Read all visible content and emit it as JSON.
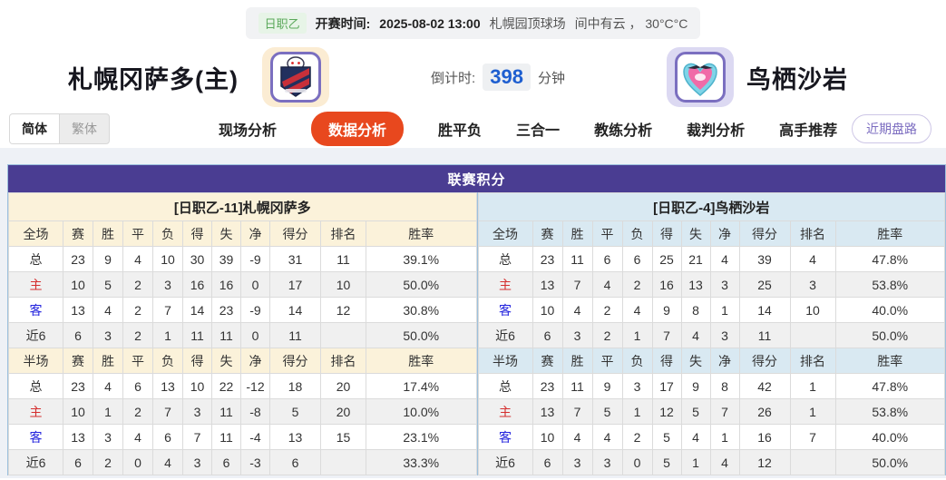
{
  "match_info": {
    "league_badge": "日职乙",
    "kickoff_label": "开赛时间:",
    "kickoff_time": "2025-08-02 13:00",
    "venue": "札幌园顶球场",
    "weather": "间中有云 ， 30°C°C"
  },
  "teams": {
    "home": {
      "name": "札幌冈萨多(主)",
      "crest_icon": "consadole-sapporo-crest"
    },
    "away": {
      "name": "鸟栖沙岩",
      "crest_icon": "sagan-tosu-crest"
    }
  },
  "countdown": {
    "label": "倒计时:",
    "value": "398",
    "unit": "分钟"
  },
  "lang_toggle": {
    "simplified": "简体",
    "traditional": "繁体"
  },
  "nav": {
    "tabs": [
      {
        "label": "现场分析",
        "active": false
      },
      {
        "label": "数据分析",
        "active": true
      },
      {
        "label": "胜平负",
        "active": false
      },
      {
        "label": "三合一",
        "active": false
      },
      {
        "label": "教练分析",
        "active": false
      },
      {
        "label": "裁判分析",
        "active": false
      },
      {
        "label": "高手推荐",
        "active": false
      }
    ],
    "recent_trends_button": "近期盘路"
  },
  "standings": {
    "title": "联赛积分",
    "full_label": "全场",
    "half_label": "半场",
    "columns": [
      "赛",
      "胜",
      "平",
      "负",
      "得",
      "失",
      "净",
      "得分",
      "排名",
      "胜率"
    ],
    "home": {
      "section_title": "[日职乙-11]札幌冈萨多",
      "full": [
        {
          "label": "总",
          "type": "total",
          "values": [
            "23",
            "9",
            "4",
            "10",
            "30",
            "39",
            "-9",
            "31",
            "11",
            "39.1%"
          ]
        },
        {
          "label": "主",
          "type": "home",
          "values": [
            "10",
            "5",
            "2",
            "3",
            "16",
            "16",
            "0",
            "17",
            "10",
            "50.0%"
          ]
        },
        {
          "label": "客",
          "type": "away",
          "values": [
            "13",
            "4",
            "2",
            "7",
            "14",
            "23",
            "-9",
            "14",
            "12",
            "30.8%"
          ]
        },
        {
          "label": "近6",
          "type": "recent",
          "values": [
            "6",
            "3",
            "2",
            "1",
            "11",
            "11",
            "0",
            "11",
            "",
            "50.0%"
          ]
        }
      ],
      "half": [
        {
          "label": "总",
          "type": "total",
          "values": [
            "23",
            "4",
            "6",
            "13",
            "10",
            "22",
            "-12",
            "18",
            "20",
            "17.4%"
          ]
        },
        {
          "label": "主",
          "type": "home",
          "values": [
            "10",
            "1",
            "2",
            "7",
            "3",
            "11",
            "-8",
            "5",
            "20",
            "10.0%"
          ]
        },
        {
          "label": "客",
          "type": "away",
          "values": [
            "13",
            "3",
            "4",
            "6",
            "7",
            "11",
            "-4",
            "13",
            "15",
            "23.1%"
          ]
        },
        {
          "label": "近6",
          "type": "recent",
          "values": [
            "6",
            "2",
            "0",
            "4",
            "3",
            "6",
            "-3",
            "6",
            "",
            "33.3%"
          ]
        }
      ]
    },
    "away": {
      "section_title": "[日职乙-4]鸟栖沙岩",
      "full": [
        {
          "label": "总",
          "type": "total",
          "values": [
            "23",
            "11",
            "6",
            "6",
            "25",
            "21",
            "4",
            "39",
            "4",
            "47.8%"
          ]
        },
        {
          "label": "主",
          "type": "home",
          "values": [
            "13",
            "7",
            "4",
            "2",
            "16",
            "13",
            "3",
            "25",
            "3",
            "53.8%"
          ]
        },
        {
          "label": "客",
          "type": "away",
          "values": [
            "10",
            "4",
            "2",
            "4",
            "9",
            "8",
            "1",
            "14",
            "10",
            "40.0%"
          ]
        },
        {
          "label": "近6",
          "type": "recent",
          "values": [
            "6",
            "3",
            "2",
            "1",
            "7",
            "4",
            "3",
            "11",
            "",
            "50.0%"
          ]
        }
      ],
      "half": [
        {
          "label": "总",
          "type": "total",
          "values": [
            "23",
            "11",
            "9",
            "3",
            "17",
            "9",
            "8",
            "42",
            "1",
            "47.8%"
          ]
        },
        {
          "label": "主",
          "type": "home",
          "values": [
            "13",
            "7",
            "5",
            "1",
            "12",
            "5",
            "7",
            "26",
            "1",
            "53.8%"
          ]
        },
        {
          "label": "客",
          "type": "away",
          "values": [
            "10",
            "4",
            "4",
            "2",
            "5",
            "4",
            "1",
            "16",
            "7",
            "40.0%"
          ]
        },
        {
          "label": "近6",
          "type": "recent",
          "values": [
            "6",
            "3",
            "3",
            "0",
            "5",
            "1",
            "4",
            "12",
            "",
            "50.0%"
          ]
        }
      ]
    }
  },
  "colors": {
    "header_purple": "#4a3d92",
    "active_tab_orange": "#e8481e",
    "countdown_blue": "#1e5fd0",
    "home_section_bg": "#fbf2da",
    "away_section_bg": "#d9e9f2",
    "home_row_label_red": "#d42f2f",
    "away_row_label_blue": "#2222dd",
    "badge_green": "#5aa85a"
  }
}
